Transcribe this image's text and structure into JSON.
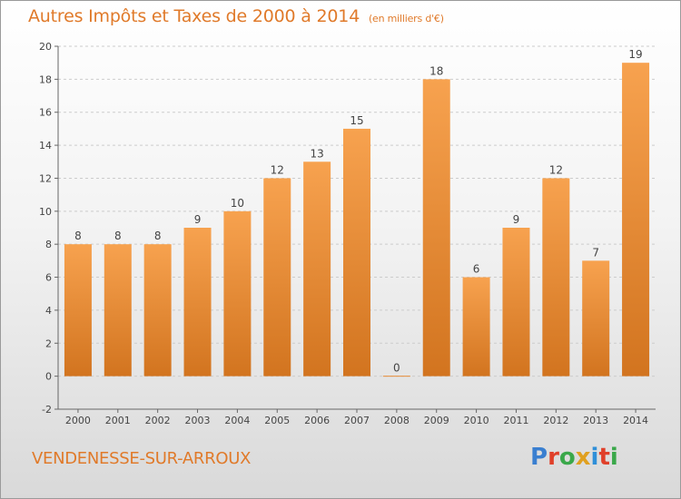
{
  "header": {
    "title": "Autres Impôts et Taxes de 2000 à 2014",
    "subtitle": "(en milliers d'€)"
  },
  "footer": {
    "place": "VENDENESSE-SUR-ARROUX"
  },
  "logo": {
    "letters": [
      "P",
      "r",
      "o",
      "x",
      "i",
      "t",
      "i"
    ],
    "colors": [
      "#3a7fd0",
      "#e0402a",
      "#3aa84a",
      "#e0a020",
      "#2f8fd8",
      "#e0402a",
      "#3aa84a"
    ]
  },
  "colors": {
    "bar_top": "#f7a24f",
    "bar_bottom": "#d2741f",
    "text": "#444444",
    "grid": "#cccccc",
    "accent": "#e07a2a"
  },
  "chart_data": {
    "type": "bar",
    "categories": [
      "2000",
      "2001",
      "2002",
      "2003",
      "2004",
      "2005",
      "2006",
      "2007",
      "2008",
      "2009",
      "2010",
      "2011",
      "2012",
      "2013",
      "2014"
    ],
    "values": [
      8,
      8,
      8,
      9,
      10,
      12,
      13,
      15,
      0,
      18,
      6,
      9,
      12,
      7,
      19
    ],
    "value_labels": [
      "8",
      "8",
      "8",
      "9",
      "10",
      "12",
      "13",
      "15",
      "0",
      "18",
      "6",
      "9",
      "12",
      "7",
      "19"
    ],
    "ylim": [
      -2,
      20
    ],
    "yticks": [
      -2,
      0,
      2,
      4,
      6,
      8,
      10,
      12,
      14,
      16,
      18,
      20
    ],
    "grid": "horizontal dashed",
    "title": "Autres Impôts et Taxes de 2000 à 2014",
    "xlabel": "",
    "ylabel": ""
  }
}
